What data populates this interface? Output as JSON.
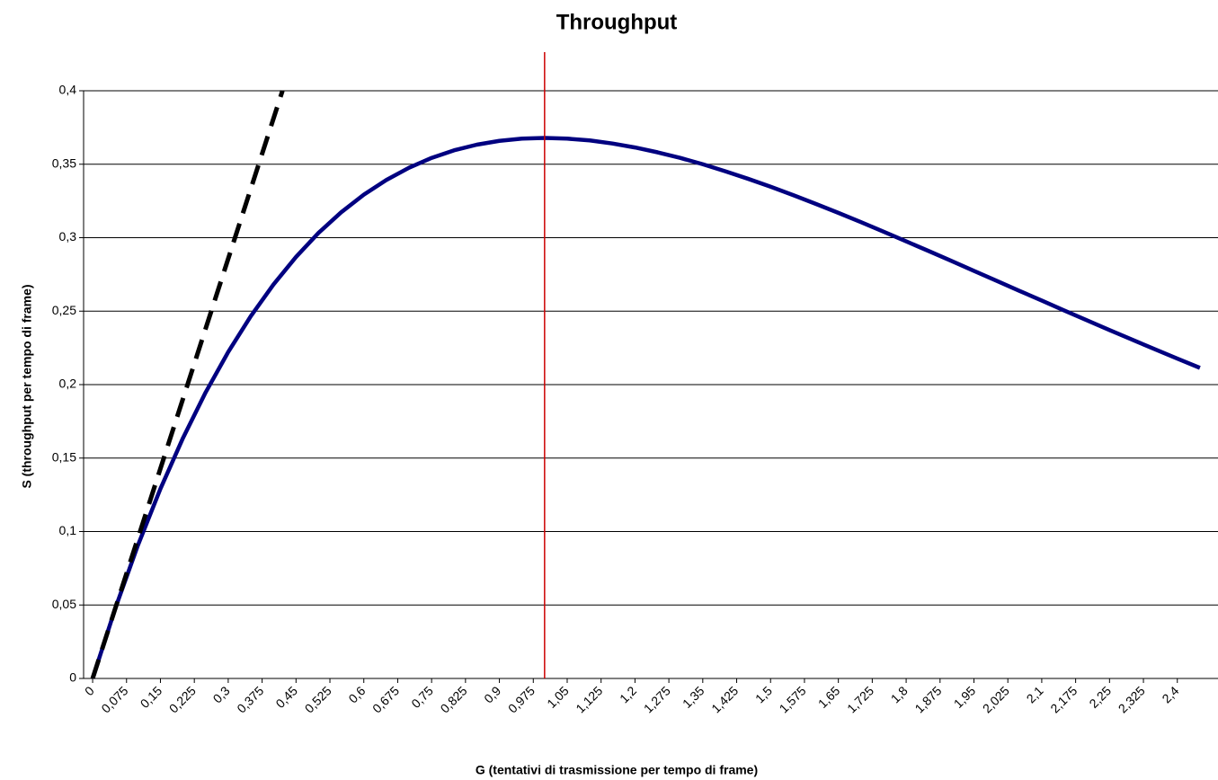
{
  "chart_data": {
    "type": "line",
    "title": "Throughput",
    "xlabel": "G (tentativi di trasmissione per tempo di frame)",
    "ylabel": "S (throughput per tempo di frame)",
    "xlim": [
      -0.02,
      2.49
    ],
    "ylim": [
      0,
      0.4
    ],
    "grid": true,
    "yticks": [
      0,
      {
        "value": 0.05,
        "label": "0,05"
      },
      {
        "value": 0.1,
        "label": "0,1"
      },
      {
        "value": 0.15,
        "label": "0,15"
      },
      {
        "value": 0.2,
        "label": "0,2"
      },
      {
        "value": 0.25,
        "label": "0,25"
      },
      {
        "value": 0.3,
        "label": "0,3"
      },
      {
        "value": 0.35,
        "label": "0,35"
      },
      {
        "value": 0.4,
        "label": "0,4"
      }
    ],
    "xticks": [
      0,
      {
        "value": 0.075,
        "label": "0,075"
      },
      {
        "value": 0.15,
        "label": "0,15"
      },
      {
        "value": 0.225,
        "label": "0,225"
      },
      {
        "value": 0.3,
        "label": "0,3"
      },
      {
        "value": 0.375,
        "label": "0,375"
      },
      {
        "value": 0.45,
        "label": "0,45"
      },
      {
        "value": 0.525,
        "label": "0,525"
      },
      {
        "value": 0.6,
        "label": "0,6"
      },
      {
        "value": 0.675,
        "label": "0,675"
      },
      {
        "value": 0.75,
        "label": "0,75"
      },
      {
        "value": 0.825,
        "label": "0,825"
      },
      {
        "value": 0.9,
        "label": "0,9"
      },
      {
        "value": 0.975,
        "label": "0,975"
      },
      {
        "value": 1.05,
        "label": "1,05"
      },
      {
        "value": 1.125,
        "label": "1,125"
      },
      {
        "value": 1.2,
        "label": "1,2"
      },
      {
        "value": 1.275,
        "label": "1,275"
      },
      {
        "value": 1.35,
        "label": "1,35"
      },
      {
        "value": 1.425,
        "label": "1,425"
      },
      {
        "value": 1.5,
        "label": "1,5"
      },
      {
        "value": 1.575,
        "label": "1,575"
      },
      {
        "value": 1.65,
        "label": "1,65"
      },
      {
        "value": 1.725,
        "label": "1,725"
      },
      {
        "value": 1.8,
        "label": "1,8"
      },
      {
        "value": 1.875,
        "label": "1,875"
      },
      {
        "value": 1.95,
        "label": "1,95"
      },
      {
        "value": 2.025,
        "label": "2,025"
      },
      {
        "value": 2.1,
        "label": "2,1"
      },
      {
        "value": 2.175,
        "label": "2,175"
      },
      {
        "value": 2.25,
        "label": "2,25"
      },
      {
        "value": 2.325,
        "label": "2,325"
      },
      {
        "value": 2.4,
        "label": "2,4"
      }
    ],
    "series": [
      {
        "color": "#000080",
        "style": "solid",
        "x": [
          0,
          0.05,
          0.1,
          0.15,
          0.2,
          0.25,
          0.3,
          0.35,
          0.4,
          0.45,
          0.5,
          0.55,
          0.6,
          0.65,
          0.7,
          0.75,
          0.8,
          0.85,
          0.9,
          0.95,
          1,
          1.05,
          1.1,
          1.15,
          1.2,
          1.25,
          1.3,
          1.35,
          1.4,
          1.45,
          1.5,
          1.55,
          1.6,
          1.65,
          1.7,
          1.75,
          1.8,
          1.85,
          1.9,
          1.95,
          2,
          2.05,
          2.1,
          2.15,
          2.2,
          2.25,
          2.3,
          2.35,
          2.4,
          2.45
        ],
        "values": [
          0,
          0.0476,
          0.0905,
          0.1291,
          0.1637,
          0.1947,
          0.2222,
          0.2466,
          0.2681,
          0.2869,
          0.3033,
          0.3173,
          0.3293,
          0.3393,
          0.3476,
          0.3543,
          0.3595,
          0.3633,
          0.3659,
          0.3674,
          0.3679,
          0.3674,
          0.3662,
          0.3641,
          0.3614,
          0.3581,
          0.3543,
          0.35,
          0.3452,
          0.3401,
          0.3347,
          0.329,
          0.323,
          0.3169,
          0.3106,
          0.3041,
          0.2975,
          0.2909,
          0.2842,
          0.2774,
          0.2707,
          0.2639,
          0.2572,
          0.2504,
          0.2438,
          0.2371,
          0.2306,
          0.2241,
          0.2177,
          0.2114
        ]
      },
      {
        "color": "#000000",
        "style": "dashed",
        "x": [
          0,
          0.42
        ],
        "values": [
          0,
          0.4
        ]
      }
    ],
    "vline": {
      "x": 1,
      "color": "#cc0000"
    }
  }
}
